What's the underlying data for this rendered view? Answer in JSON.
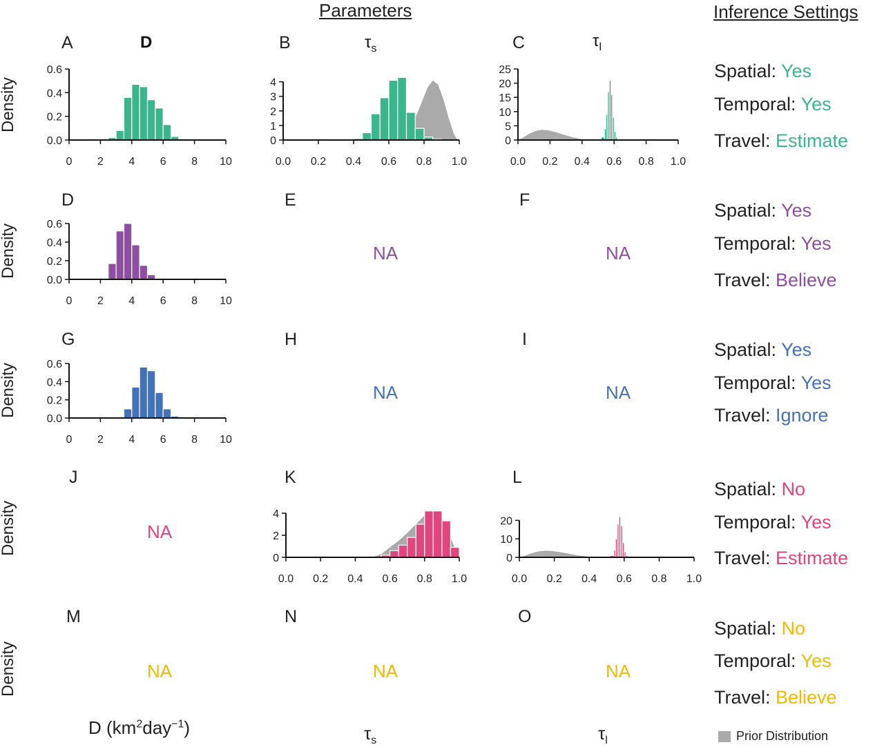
{
  "headers": {
    "parameters": "Parameters",
    "inference": "Inference Settings"
  },
  "column_titles": {
    "D": "D",
    "tau_s": "τ",
    "tau_s_sub": "s",
    "tau_l": "τ",
    "tau_l_sub": "l"
  },
  "ylabel": "Density",
  "na_text": "NA",
  "bottom_labels": {
    "D_prefix": "D (km",
    "D_sup1": "2",
    "D_mid": "day",
    "D_sup2": "−1",
    "D_suffix": ")",
    "tau_s": "τ",
    "tau_s_sub": "s",
    "tau_l": "τ",
    "tau_l_sub": "l"
  },
  "legend": {
    "prior": "Prior Distribution"
  },
  "colors": {
    "green": "#3bb58c",
    "green_dark": "#0f9f73",
    "purple": "#8e4fa3",
    "blue": "#4472b8",
    "pink": "#e0457b",
    "yellow": "#f2b900",
    "prior": "#aaaaaa"
  },
  "settings_labels": {
    "spatial": "Spatial: ",
    "temporal": "Temporal: ",
    "travel": "Travel: "
  },
  "rows": [
    {
      "color": "#3bb58c",
      "letters": [
        "A",
        "B",
        "C"
      ],
      "spatial": "Yes",
      "temporal": "Yes",
      "travel": "Estimate"
    },
    {
      "color": "#8e4fa3",
      "letters": [
        "D",
        "E",
        "F"
      ],
      "spatial": "Yes",
      "temporal": "Yes",
      "travel": "Believe"
    },
    {
      "color": "#4472b8",
      "letters": [
        "G",
        "H",
        "I"
      ],
      "spatial": "Yes",
      "temporal": "Yes",
      "travel": "Ignore"
    },
    {
      "color": "#e0457b",
      "letters": [
        "J",
        "K",
        "L"
      ],
      "spatial": "No",
      "temporal": "Yes",
      "travel": "Estimate"
    },
    {
      "color": "#f2b900",
      "letters": [
        "M",
        "N",
        "O"
      ],
      "spatial": "No",
      "temporal": "Yes",
      "travel": "Believe"
    }
  ],
  "chart_data": [
    {
      "id": "A",
      "type": "bar",
      "color": "#3bb58c",
      "xlim": [
        0,
        10
      ],
      "xticks": [
        0,
        2,
        4,
        6,
        8,
        10
      ],
      "ylim": [
        0,
        0.6
      ],
      "yticks": [
        0.0,
        0.2,
        0.4,
        0.6
      ],
      "bins": [
        [
          2.5,
          3.0,
          0.02
        ],
        [
          3.0,
          3.5,
          0.08
        ],
        [
          3.5,
          4.0,
          0.36
        ],
        [
          4.0,
          4.5,
          0.47
        ],
        [
          4.5,
          5.0,
          0.45
        ],
        [
          5.0,
          5.5,
          0.34
        ],
        [
          5.5,
          6.0,
          0.27
        ],
        [
          6.0,
          6.5,
          0.13
        ],
        [
          6.5,
          7.0,
          0.03
        ],
        [
          7.0,
          7.5,
          0.01
        ]
      ]
    },
    {
      "id": "B",
      "type": "bar",
      "color": "#3bb58c",
      "xlim": [
        0,
        1
      ],
      "xticks": [
        0.0,
        0.2,
        0.4,
        0.6,
        0.8,
        1.0
      ],
      "ylim": [
        0,
        4.5
      ],
      "yticks": [
        0,
        1,
        2,
        3,
        4
      ],
      "bins": [
        [
          0.4,
          0.45,
          0.1
        ],
        [
          0.45,
          0.5,
          0.5
        ],
        [
          0.5,
          0.55,
          1.8
        ],
        [
          0.55,
          0.6,
          2.9
        ],
        [
          0.6,
          0.65,
          4.1
        ],
        [
          0.65,
          0.7,
          4.3
        ],
        [
          0.7,
          0.75,
          1.9
        ],
        [
          0.75,
          0.8,
          0.8
        ],
        [
          0.8,
          0.85,
          0.2
        ],
        [
          0.85,
          0.9,
          0.05
        ]
      ],
      "prior": {
        "x": [
          0.66,
          0.7,
          0.74,
          0.78,
          0.82,
          0.85,
          0.88,
          0.91,
          0.94,
          0.97,
          0.99
        ],
        "y": [
          0.0,
          0.4,
          1.2,
          2.4,
          3.6,
          4.1,
          3.8,
          2.8,
          1.5,
          0.4,
          0.0
        ]
      }
    },
    {
      "id": "C",
      "type": "bar",
      "color": "#0f9f73",
      "xlim": [
        0,
        1
      ],
      "xticks": [
        0.0,
        0.2,
        0.4,
        0.6,
        0.8,
        1.0
      ],
      "ylim": [
        0,
        25
      ],
      "yticks": [
        0,
        5,
        10,
        15,
        20,
        25
      ],
      "bins": [
        [
          0.52,
          0.54,
          1
        ],
        [
          0.54,
          0.55,
          4
        ],
        [
          0.55,
          0.56,
          9
        ],
        [
          0.56,
          0.57,
          17
        ],
        [
          0.57,
          0.58,
          21
        ],
        [
          0.58,
          0.59,
          16
        ],
        [
          0.59,
          0.6,
          8
        ],
        [
          0.6,
          0.61,
          3
        ],
        [
          0.61,
          0.62,
          1
        ]
      ],
      "prior": {
        "x": [
          0.0,
          0.03,
          0.07,
          0.11,
          0.15,
          0.19,
          0.24,
          0.29,
          0.34,
          0.39,
          0.43,
          0.47
        ],
        "y": [
          0.0,
          0.8,
          2.2,
          3.2,
          3.6,
          3.4,
          2.7,
          1.8,
          1.0,
          0.4,
          0.1,
          0.0
        ]
      }
    },
    {
      "id": "D",
      "type": "bar",
      "color": "#8e4fa3",
      "xlim": [
        0,
        10
      ],
      "xticks": [
        0,
        2,
        4,
        6,
        8,
        10
      ],
      "ylim": [
        0,
        0.6
      ],
      "yticks": [
        0.0,
        0.2,
        0.4,
        0.6
      ],
      "bins": [
        [
          2.0,
          2.5,
          0.01
        ],
        [
          2.5,
          3.0,
          0.17
        ],
        [
          3.0,
          3.5,
          0.52
        ],
        [
          3.5,
          4.0,
          0.6
        ],
        [
          4.0,
          4.5,
          0.37
        ],
        [
          4.5,
          5.0,
          0.15
        ],
        [
          5.0,
          5.5,
          0.05
        ],
        [
          5.5,
          6.0,
          0.01
        ]
      ]
    },
    {
      "id": "G",
      "type": "bar",
      "color": "#4472b8",
      "xlim": [
        0,
        10
      ],
      "xticks": [
        0,
        2,
        4,
        6,
        8,
        10
      ],
      "ylim": [
        0,
        0.6
      ],
      "yticks": [
        0.0,
        0.2,
        0.4,
        0.6
      ],
      "bins": [
        [
          3.5,
          4.0,
          0.1
        ],
        [
          4.0,
          4.5,
          0.34
        ],
        [
          4.5,
          5.0,
          0.56
        ],
        [
          5.0,
          5.5,
          0.52
        ],
        [
          5.5,
          6.0,
          0.28
        ],
        [
          6.0,
          6.5,
          0.1
        ],
        [
          6.5,
          7.0,
          0.02
        ],
        [
          7.0,
          7.5,
          0.01
        ]
      ]
    },
    {
      "id": "K",
      "type": "bar",
      "color": "#e0457b",
      "xlim": [
        0,
        1
      ],
      "xticks": [
        0.0,
        0.2,
        0.4,
        0.6,
        0.8,
        1.0
      ],
      "ylim": [
        0,
        4.5
      ],
      "yticks": [
        0,
        2,
        4
      ],
      "bins": [
        [
          0.55,
          0.6,
          0.2
        ],
        [
          0.6,
          0.65,
          0.6
        ],
        [
          0.65,
          0.7,
          1.1
        ],
        [
          0.7,
          0.75,
          1.8
        ],
        [
          0.75,
          0.8,
          3.0
        ],
        [
          0.8,
          0.85,
          4.2
        ],
        [
          0.85,
          0.9,
          4.2
        ],
        [
          0.9,
          0.95,
          3.3
        ],
        [
          0.95,
          1.0,
          0.9
        ]
      ],
      "prior": {
        "x": [
          0.5,
          0.55,
          0.6,
          0.65,
          0.7,
          0.75,
          0.8,
          0.84,
          0.88,
          0.92,
          0.96,
          0.99
        ],
        "y": [
          0.0,
          0.3,
          0.9,
          1.5,
          2.2,
          3.0,
          3.8,
          4.2,
          4.0,
          3.0,
          1.4,
          0.1
        ]
      }
    },
    {
      "id": "L",
      "type": "bar",
      "color": "#e0457b",
      "xlim": [
        0,
        1
      ],
      "xticks": [
        0.0,
        0.2,
        0.4,
        0.6,
        0.8,
        1.0
      ],
      "ylim": [
        0,
        25
      ],
      "yticks": [
        0,
        10,
        20
      ],
      "bins": [
        [
          0.52,
          0.54,
          1
        ],
        [
          0.54,
          0.55,
          4
        ],
        [
          0.55,
          0.56,
          10
        ],
        [
          0.56,
          0.57,
          18
        ],
        [
          0.57,
          0.58,
          22
        ],
        [
          0.58,
          0.59,
          17
        ],
        [
          0.59,
          0.6,
          8
        ],
        [
          0.6,
          0.61,
          3
        ],
        [
          0.61,
          0.62,
          1
        ]
      ],
      "prior": {
        "x": [
          0.0,
          0.03,
          0.07,
          0.11,
          0.15,
          0.19,
          0.24,
          0.29,
          0.34,
          0.39,
          0.43,
          0.47
        ],
        "y": [
          0.0,
          0.8,
          2.2,
          3.2,
          3.6,
          3.4,
          2.7,
          1.8,
          1.0,
          0.4,
          0.1,
          0.0
        ]
      }
    }
  ]
}
